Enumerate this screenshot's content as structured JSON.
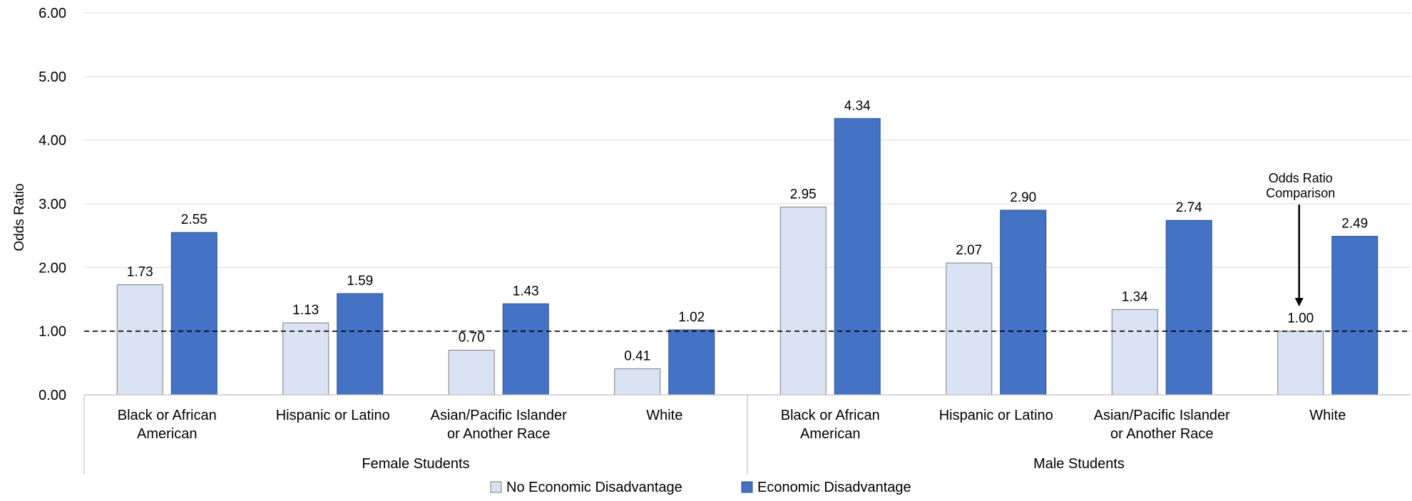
{
  "chart_data": {
    "type": "bar",
    "ylabel": "Odds Ratio",
    "ylim": [
      0,
      6
    ],
    "yticks": [
      "0.00",
      "1.00",
      "2.00",
      "3.00",
      "4.00",
      "5.00",
      "6.00"
    ],
    "grid": true,
    "legend_position": "bottom",
    "reference_line": 1.0,
    "groups": [
      {
        "label": "Female Students",
        "categories": [
          [
            "Black or African",
            "American"
          ],
          [
            "Hispanic or Latino"
          ],
          [
            "Asian/Pacific Islander",
            "or Another Race"
          ],
          [
            "White"
          ]
        ]
      },
      {
        "label": "Male Students",
        "categories": [
          [
            "Black or African",
            "American"
          ],
          [
            "Hispanic or Latino"
          ],
          [
            "Asian/Pacific Islander",
            "or Another Race"
          ],
          [
            "White"
          ]
        ]
      }
    ],
    "series": [
      {
        "name": "No Economic Disadvantage",
        "color": "#dae3f3",
        "values": [
          1.73,
          1.13,
          0.7,
          0.41,
          2.95,
          2.07,
          1.34,
          1.0
        ],
        "labels": [
          "1.73",
          "1.13",
          "0.70",
          "0.41",
          "2.95",
          "2.07",
          "1.34",
          "1.00"
        ]
      },
      {
        "name": "Economic Disadvantage",
        "color": "#4472c4",
        "values": [
          2.55,
          1.59,
          1.43,
          1.02,
          4.34,
          2.9,
          2.74,
          2.49
        ],
        "labels": [
          "2.55",
          "1.59",
          "1.43",
          "1.02",
          "4.34",
          "2.90",
          "2.74",
          "2.49"
        ]
      }
    ],
    "annotation": {
      "lines": [
        "Odds Ratio",
        "Comparison"
      ],
      "target_category_index": 7,
      "target_series_index": 0
    }
  }
}
